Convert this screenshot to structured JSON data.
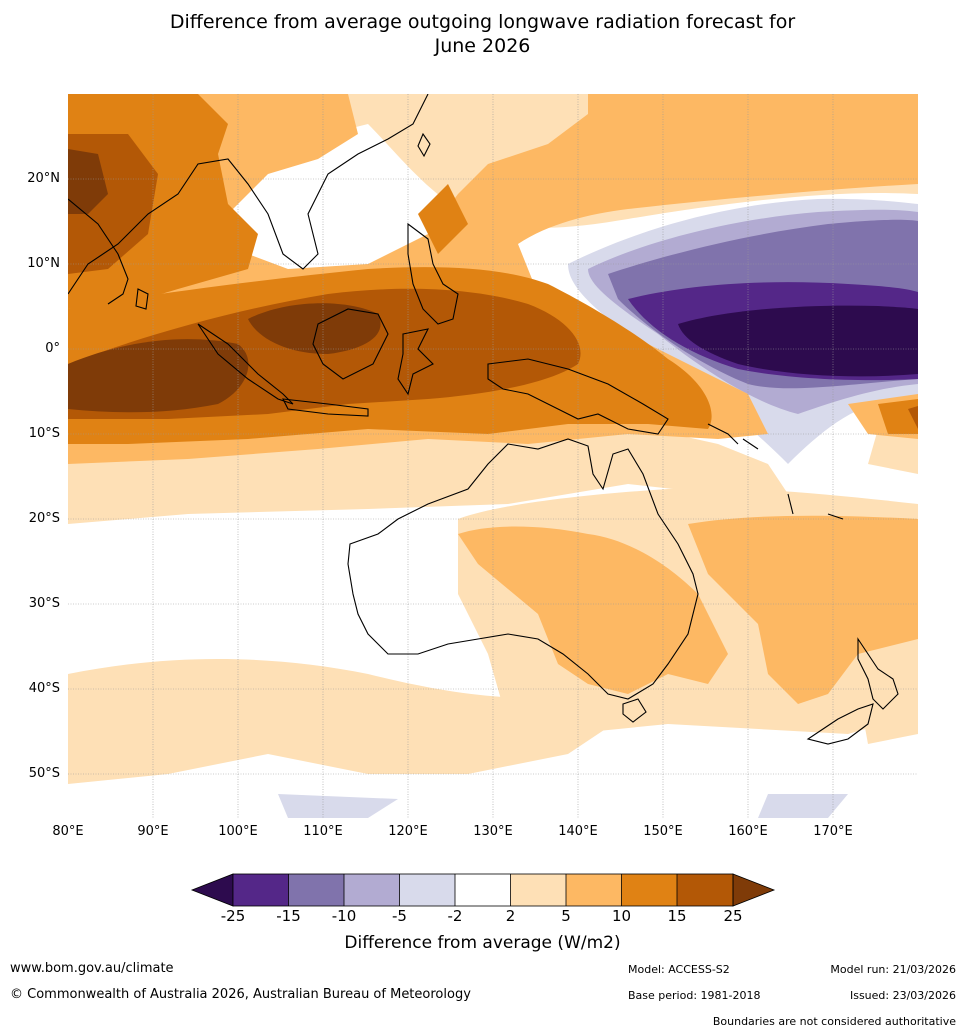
{
  "title": {
    "line1": "Difference from average outgoing longwave radiation forecast for",
    "line2": "June 2026"
  },
  "map": {
    "lat_labels": [
      "20°N",
      "10°N",
      "0°",
      "10°S",
      "20°S",
      "30°S",
      "40°S",
      "50°S"
    ],
    "lon_labels": [
      "80°E",
      "90°E",
      "100°E",
      "110°E",
      "120°E",
      "130°E",
      "140°E",
      "150°E",
      "160°E",
      "170°E"
    ],
    "lat_range": [
      -55,
      30
    ],
    "lon_range": [
      80,
      180
    ]
  },
  "colorbar": {
    "ticks": [
      "-25",
      "-15",
      "-10",
      "-5",
      "-2",
      "2",
      "5",
      "10",
      "15",
      "25"
    ],
    "colors": {
      "lt_-25": "#2d0b4e",
      "m25_m15": "#542788",
      "m15_m10": "#8073ac",
      "m10_m5": "#b2abd2",
      "m5_m2": "#d8daeb",
      "m2_2": "#ffffff",
      "p2_5": "#fee0b6",
      "p5_10": "#fdb863",
      "p10_15": "#e08214",
      "p15_25": "#b35806",
      "gt_25": "#7f3b08"
    },
    "label": "Difference from average (W/m2)"
  },
  "footer": {
    "website": "www.bom.gov.au/climate",
    "copyright": "© Commonwealth of Australia 2026, Australian Bureau of Meteorology",
    "model": "Model: ACCESS-S2",
    "base_period": "Base period: 1981-2018",
    "model_run": "Model run: 21/03/2026",
    "issued": "Issued: 23/03/2026",
    "disclaimer": "Boundaries are not considered authoritative"
  }
}
